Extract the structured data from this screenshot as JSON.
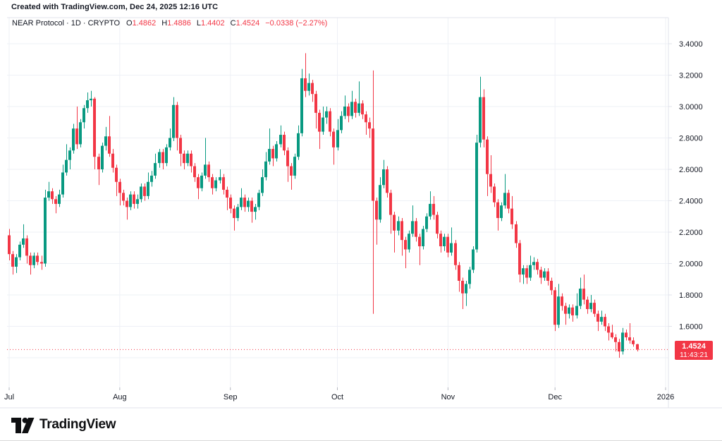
{
  "header": {
    "attribution": "Created with TradingView.com, Dec 24, 2025 12:16 UTC"
  },
  "legend": {
    "symbol_line": "NEAR Protocol · 1D · CRYPTO",
    "o_label": "O",
    "o": "1.4862",
    "h_label": "H",
    "h": "1.4886",
    "l_label": "L",
    "l": "1.4402",
    "c_label": "C",
    "c": "1.4524",
    "change": "−0.0338 (−2.27%)"
  },
  "footer": {
    "brand": "TradingView"
  },
  "chart_data": {
    "type": "candlestick",
    "title": "NEAR Protocol · 1D · CRYPTO",
    "legend_position": "top-left",
    "grid": true,
    "ylim": [
      1.2,
      3.5
    ],
    "last_price": {
      "value": 1.4524,
      "label": "1.4524",
      "countdown": "11:43:21"
    },
    "colors": {
      "up": "#089981",
      "down": "#F23645",
      "grid": "#eef0f6",
      "border": "#e0e3eb",
      "tick": "#b2b5be",
      "text": "#131722",
      "badge": "#F23645"
    },
    "y_axis": {
      "labels": [
        {
          "value": 3.4,
          "label": "3.4000"
        },
        {
          "value": 3.2,
          "label": "3.2000"
        },
        {
          "value": 3.0,
          "label": "3.0000"
        },
        {
          "value": 2.8,
          "label": "2.8000"
        },
        {
          "value": 2.6,
          "label": "2.6000"
        },
        {
          "value": 2.4,
          "label": "2.4000"
        },
        {
          "value": 2.2,
          "label": "2.2000"
        },
        {
          "value": 2.0,
          "label": "2.0000"
        },
        {
          "value": 1.8,
          "label": "1.8000"
        },
        {
          "value": 1.6,
          "label": "1.6000"
        }
      ],
      "gridline_values": [
        3.4,
        3.2,
        3.0,
        2.8,
        2.6,
        2.4,
        2.2,
        2.0,
        1.8,
        1.6,
        1.4
      ]
    },
    "x_axis": {
      "ticks": [
        {
          "label": "Jul",
          "index": 0
        },
        {
          "label": "Aug",
          "index": 31
        },
        {
          "label": "Sep",
          "index": 62
        },
        {
          "label": "Oct",
          "index": 92
        },
        {
          "label": "Nov",
          "index": 123
        },
        {
          "label": "Dec",
          "index": 153
        },
        {
          "label": "2026",
          "index": 184
        }
      ]
    },
    "series_format": [
      "open",
      "high",
      "low",
      "close"
    ],
    "series": [
      [
        2.18,
        2.22,
        2.02,
        2.06
      ],
      [
        2.06,
        2.08,
        1.93,
        1.98
      ],
      [
        1.98,
        2.06,
        1.94,
        2.04
      ],
      [
        2.04,
        2.14,
        2.02,
        2.12
      ],
      [
        2.12,
        2.25,
        2.1,
        2.16
      ],
      [
        2.16,
        2.18,
        2.0,
        2.05
      ],
      [
        2.05,
        2.07,
        1.93,
        1.99
      ],
      [
        1.99,
        2.07,
        1.97,
        2.05
      ],
      [
        2.05,
        2.07,
        1.99,
        2.01
      ],
      [
        2.01,
        2.05,
        1.96,
        2.0
      ],
      [
        2.0,
        2.47,
        1.98,
        2.42
      ],
      [
        2.42,
        2.52,
        2.4,
        2.46
      ],
      [
        2.46,
        2.48,
        2.38,
        2.41
      ],
      [
        2.41,
        2.43,
        2.32,
        2.38
      ],
      [
        2.38,
        2.47,
        2.36,
        2.44
      ],
      [
        2.44,
        2.63,
        2.42,
        2.58
      ],
      [
        2.58,
        2.76,
        2.56,
        2.66
      ],
      [
        2.66,
        2.74,
        2.6,
        2.72
      ],
      [
        2.72,
        2.89,
        2.7,
        2.86
      ],
      [
        2.86,
        3.0,
        2.73,
        2.76
      ],
      [
        2.76,
        2.92,
        2.74,
        2.9
      ],
      [
        2.9,
        3.01,
        2.86,
        2.99
      ],
      [
        2.99,
        3.09,
        2.96,
        3.04
      ],
      [
        3.04,
        3.1,
        3.0,
        3.05
      ],
      [
        3.05,
        3.06,
        2.6,
        2.68
      ],
      [
        2.68,
        2.7,
        2.5,
        2.6
      ],
      [
        2.6,
        2.77,
        2.58,
        2.75
      ],
      [
        2.75,
        2.87,
        2.72,
        2.81
      ],
      [
        2.81,
        2.94,
        2.68,
        2.7
      ],
      [
        2.7,
        2.73,
        2.58,
        2.61
      ],
      [
        2.61,
        2.63,
        2.43,
        2.52
      ],
      [
        2.52,
        2.54,
        2.37,
        2.45
      ],
      [
        2.45,
        2.47,
        2.37,
        2.4
      ],
      [
        2.4,
        2.42,
        2.28,
        2.36
      ],
      [
        2.36,
        2.46,
        2.34,
        2.44
      ],
      [
        2.44,
        2.46,
        2.35,
        2.38
      ],
      [
        2.38,
        2.44,
        2.35,
        2.41
      ],
      [
        2.41,
        2.51,
        2.39,
        2.49
      ],
      [
        2.49,
        2.51,
        2.4,
        2.43
      ],
      [
        2.43,
        2.58,
        2.41,
        2.52
      ],
      [
        2.52,
        2.59,
        2.49,
        2.56
      ],
      [
        2.56,
        2.7,
        2.54,
        2.64
      ],
      [
        2.64,
        2.73,
        2.61,
        2.71
      ],
      [
        2.71,
        2.73,
        2.6,
        2.64
      ],
      [
        2.64,
        2.76,
        2.62,
        2.74
      ],
      [
        2.74,
        2.86,
        2.72,
        2.8
      ],
      [
        2.8,
        3.06,
        2.78,
        3.01
      ],
      [
        3.01,
        3.03,
        2.72,
        2.8
      ],
      [
        2.8,
        2.82,
        2.62,
        2.7
      ],
      [
        2.7,
        2.72,
        2.6,
        2.64
      ],
      [
        2.64,
        2.72,
        2.62,
        2.7
      ],
      [
        2.7,
        2.72,
        2.58,
        2.62
      ],
      [
        2.62,
        2.64,
        2.52,
        2.55
      ],
      [
        2.55,
        2.57,
        2.41,
        2.48
      ],
      [
        2.48,
        2.58,
        2.46,
        2.56
      ],
      [
        2.56,
        2.8,
        2.54,
        2.63
      ],
      [
        2.63,
        2.65,
        2.52,
        2.55
      ],
      [
        2.55,
        2.57,
        2.44,
        2.48
      ],
      [
        2.48,
        2.55,
        2.46,
        2.53
      ],
      [
        2.53,
        2.6,
        2.51,
        2.55
      ],
      [
        2.55,
        2.57,
        2.44,
        2.47
      ],
      [
        2.47,
        2.49,
        2.34,
        2.42
      ],
      [
        2.42,
        2.44,
        2.32,
        2.35
      ],
      [
        2.35,
        2.37,
        2.21,
        2.29
      ],
      [
        2.29,
        2.38,
        2.27,
        2.36
      ],
      [
        2.36,
        2.48,
        2.34,
        2.42
      ],
      [
        2.42,
        2.44,
        2.33,
        2.36
      ],
      [
        2.36,
        2.42,
        2.33,
        2.4
      ],
      [
        2.4,
        2.42,
        2.26,
        2.33
      ],
      [
        2.33,
        2.38,
        2.28,
        2.36
      ],
      [
        2.36,
        2.47,
        2.34,
        2.45
      ],
      [
        2.45,
        2.6,
        2.43,
        2.55
      ],
      [
        2.55,
        2.71,
        2.53,
        2.65
      ],
      [
        2.65,
        2.86,
        2.63,
        2.73
      ],
      [
        2.73,
        2.75,
        2.62,
        2.67
      ],
      [
        2.67,
        2.78,
        2.65,
        2.76
      ],
      [
        2.76,
        2.88,
        2.74,
        2.82
      ],
      [
        2.82,
        2.84,
        2.69,
        2.72
      ],
      [
        2.72,
        2.74,
        2.52,
        2.62
      ],
      [
        2.62,
        2.64,
        2.47,
        2.56
      ],
      [
        2.56,
        2.7,
        2.54,
        2.68
      ],
      [
        2.68,
        2.88,
        2.66,
        2.83
      ],
      [
        2.83,
        3.24,
        2.81,
        3.18
      ],
      [
        3.18,
        3.34,
        3.06,
        3.1
      ],
      [
        3.1,
        3.21,
        3.07,
        3.15
      ],
      [
        3.15,
        3.17,
        3.03,
        3.08
      ],
      [
        3.08,
        3.1,
        2.86,
        2.96
      ],
      [
        2.96,
        2.98,
        2.73,
        2.84
      ],
      [
        2.84,
        3.0,
        2.82,
        2.93
      ],
      [
        2.93,
        3.0,
        2.89,
        2.97
      ],
      [
        2.97,
        2.99,
        2.81,
        2.84
      ],
      [
        2.84,
        2.86,
        2.63,
        2.74
      ],
      [
        2.74,
        2.92,
        2.72,
        2.85
      ],
      [
        2.85,
        2.97,
        2.83,
        2.94
      ],
      [
        2.94,
        3.07,
        2.92,
        3.0
      ],
      [
        3.0,
        3.02,
        2.9,
        2.94
      ],
      [
        2.94,
        3.1,
        2.92,
        3.03
      ],
      [
        3.03,
        3.05,
        2.93,
        2.96
      ],
      [
        2.96,
        3.16,
        2.94,
        3.02
      ],
      [
        3.02,
        3.04,
        2.92,
        2.95
      ],
      [
        2.95,
        2.97,
        2.82,
        2.9
      ],
      [
        2.9,
        2.93,
        2.8,
        2.86
      ],
      [
        2.86,
        3.23,
        1.68,
        2.4
      ],
      [
        2.4,
        2.42,
        2.12,
        2.28
      ],
      [
        2.28,
        2.55,
        2.26,
        2.5
      ],
      [
        2.5,
        2.66,
        2.48,
        2.6
      ],
      [
        2.6,
        2.62,
        2.42,
        2.45
      ],
      [
        2.45,
        2.47,
        2.19,
        2.31
      ],
      [
        2.31,
        2.33,
        2.07,
        2.21
      ],
      [
        2.21,
        2.3,
        2.18,
        2.27
      ],
      [
        2.27,
        2.29,
        2.05,
        2.15
      ],
      [
        2.15,
        2.17,
        1.97,
        2.09
      ],
      [
        2.09,
        2.21,
        2.07,
        2.19
      ],
      [
        2.19,
        2.37,
        2.17,
        2.27
      ],
      [
        2.27,
        2.29,
        2.14,
        2.17
      ],
      [
        2.17,
        2.19,
        1.99,
        2.11
      ],
      [
        2.11,
        2.24,
        2.09,
        2.22
      ],
      [
        2.22,
        2.32,
        2.2,
        2.3
      ],
      [
        2.3,
        2.46,
        2.28,
        2.38
      ],
      [
        2.38,
        2.43,
        2.28,
        2.31
      ],
      [
        2.31,
        2.33,
        2.16,
        2.19
      ],
      [
        2.19,
        2.21,
        2.07,
        2.11
      ],
      [
        2.11,
        2.19,
        2.08,
        2.17
      ],
      [
        2.17,
        2.19,
        2.04,
        2.07
      ],
      [
        2.07,
        2.23,
        2.05,
        2.13
      ],
      [
        2.13,
        2.15,
        1.96,
        1.99
      ],
      [
        1.99,
        2.01,
        1.82,
        1.89
      ],
      [
        1.89,
        1.91,
        1.71,
        1.81
      ],
      [
        1.81,
        1.89,
        1.73,
        1.87
      ],
      [
        1.87,
        1.98,
        1.84,
        1.96
      ],
      [
        1.96,
        2.11,
        1.94,
        2.09
      ],
      [
        2.09,
        2.82,
        2.07,
        2.77
      ],
      [
        2.77,
        3.19,
        2.74,
        3.06
      ],
      [
        3.06,
        3.11,
        2.74,
        2.79
      ],
      [
        2.79,
        2.81,
        2.43,
        2.57
      ],
      [
        2.57,
        2.69,
        2.45,
        2.49
      ],
      [
        2.49,
        2.51,
        2.36,
        2.39
      ],
      [
        2.39,
        2.41,
        2.21,
        2.29
      ],
      [
        2.29,
        2.39,
        2.27,
        2.37
      ],
      [
        2.37,
        2.57,
        2.35,
        2.45
      ],
      [
        2.45,
        2.47,
        2.32,
        2.35
      ],
      [
        2.35,
        2.43,
        2.22,
        2.25
      ],
      [
        2.25,
        2.27,
        2.1,
        2.13
      ],
      [
        2.13,
        2.15,
        1.88,
        1.93
      ],
      [
        1.93,
        1.99,
        1.87,
        1.97
      ],
      [
        1.97,
        1.99,
        1.87,
        1.91
      ],
      [
        1.91,
        2.05,
        1.89,
        1.99
      ],
      [
        1.99,
        2.04,
        1.96,
        2.01
      ],
      [
        2.01,
        2.03,
        1.93,
        1.96
      ],
      [
        1.96,
        1.98,
        1.87,
        1.91
      ],
      [
        1.91,
        1.97,
        1.89,
        1.95
      ],
      [
        1.95,
        1.97,
        1.86,
        1.89
      ],
      [
        1.89,
        1.91,
        1.8,
        1.83
      ],
      [
        1.83,
        1.85,
        1.57,
        1.61
      ],
      [
        1.61,
        1.87,
        1.59,
        1.79
      ],
      [
        1.79,
        1.81,
        1.7,
        1.73
      ],
      [
        1.73,
        1.75,
        1.61,
        1.68
      ],
      [
        1.68,
        1.74,
        1.65,
        1.72
      ],
      [
        1.72,
        1.74,
        1.63,
        1.67
      ],
      [
        1.67,
        1.81,
        1.65,
        1.73
      ],
      [
        1.73,
        1.91,
        1.71,
        1.84
      ],
      [
        1.84,
        1.93,
        1.74,
        1.77
      ],
      [
        1.77,
        1.79,
        1.68,
        1.71
      ],
      [
        1.71,
        1.8,
        1.69,
        1.75
      ],
      [
        1.75,
        1.77,
        1.66,
        1.68
      ],
      [
        1.68,
        1.7,
        1.57,
        1.63
      ],
      [
        1.63,
        1.7,
        1.61,
        1.66
      ],
      [
        1.66,
        1.68,
        1.57,
        1.6
      ],
      [
        1.6,
        1.62,
        1.51,
        1.56
      ],
      [
        1.56,
        1.61,
        1.52,
        1.53
      ],
      [
        1.53,
        1.55,
        1.44,
        1.5
      ],
      [
        1.5,
        1.52,
        1.4,
        1.44
      ],
      [
        1.44,
        1.59,
        1.42,
        1.56
      ],
      [
        1.56,
        1.58,
        1.51,
        1.53
      ],
      [
        1.53,
        1.62,
        1.49,
        1.51
      ],
      [
        1.51,
        1.53,
        1.47,
        1.486
      ],
      [
        1.4862,
        1.4886,
        1.4402,
        1.4524
      ]
    ]
  }
}
